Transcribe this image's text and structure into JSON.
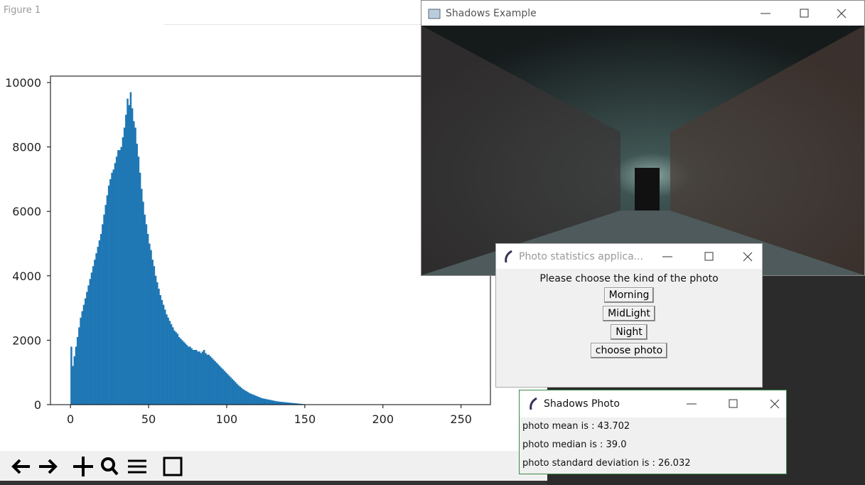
{
  "figure_window": {
    "title": "Figure 1"
  },
  "chart_data": {
    "type": "histogram",
    "color": "#1f77b4",
    "bins": [
      0,
      1,
      2,
      3,
      4,
      5,
      6,
      7,
      8,
      9,
      10,
      11,
      12,
      13,
      14,
      15,
      16,
      17,
      18,
      19,
      20,
      21,
      22,
      23,
      24,
      25,
      26,
      27,
      28,
      29,
      30,
      31,
      32,
      33,
      34,
      35,
      36,
      37,
      38,
      39,
      40,
      41,
      42,
      43,
      44,
      45,
      46,
      47,
      48,
      49,
      50,
      51,
      52,
      53,
      54,
      55,
      56,
      57,
      58,
      59,
      60,
      61,
      62,
      63,
      64,
      65,
      66,
      67,
      68,
      69,
      70,
      71,
      72,
      73,
      74,
      75,
      76,
      77,
      78,
      79,
      80,
      81,
      82,
      83,
      84,
      85,
      86,
      87,
      88,
      89,
      90,
      91,
      92,
      93,
      94,
      95,
      96,
      97,
      98,
      99,
      100,
      101,
      102,
      103,
      104,
      105,
      106,
      107,
      108,
      109,
      110,
      111,
      112,
      113,
      114,
      115,
      116,
      117,
      118,
      119,
      120,
      121,
      122,
      123,
      124,
      125,
      126,
      127,
      128,
      129,
      130,
      131,
      132,
      133,
      134,
      135,
      136,
      137,
      138,
      139,
      140,
      141,
      142,
      143,
      144,
      145,
      146,
      147,
      148,
      149,
      150,
      151
    ],
    "values": [
      1800,
      1200,
      1500,
      1800,
      2100,
      2400,
      2700,
      2900,
      3100,
      3300,
      3500,
      3700,
      3900,
      4100,
      4300,
      4500,
      4700,
      4900,
      5100,
      5300,
      5600,
      5900,
      6200,
      6500,
      6800,
      7000,
      7200,
      7300,
      7500,
      7700,
      7900,
      7900,
      8000,
      8300,
      8600,
      9000,
      9500,
      9300,
      9700,
      9200,
      8800,
      8600,
      8100,
      7700,
      7200,
      6700,
      6300,
      5900,
      5600,
      5300,
      5000,
      4800,
      4500,
      4300,
      4000,
      3800,
      3600,
      3400,
      3250,
      3100,
      2950,
      2800,
      2700,
      2600,
      2500,
      2400,
      2300,
      2250,
      2200,
      2100,
      2050,
      2000,
      1950,
      1900,
      1850,
      1800,
      1800,
      1750,
      1700,
      1700,
      1700,
      1650,
      1650,
      1600,
      1650,
      1700,
      1600,
      1550,
      1550,
      1500,
      1450,
      1400,
      1350,
      1300,
      1250,
      1200,
      1150,
      1100,
      1050,
      1000,
      950,
      900,
      850,
      800,
      750,
      700,
      650,
      600,
      560,
      520,
      480,
      450,
      420,
      390,
      360,
      340,
      320,
      300,
      280,
      260,
      240,
      220,
      200,
      190,
      180,
      170,
      160,
      150,
      140,
      130,
      120,
      110,
      100,
      95,
      90,
      85,
      80,
      75,
      70,
      65,
      60,
      55,
      50,
      45,
      40,
      35,
      30,
      25,
      20,
      15,
      10
    ],
    "xlim": [
      -12.8,
      268.8
    ],
    "xticks": [
      0,
      50,
      100,
      150,
      200,
      250
    ],
    "ylim": [
      0,
      10200
    ],
    "yticks": [
      0,
      2000,
      4000,
      6000,
      8000,
      10000
    ]
  },
  "shadows_window": {
    "title": "Shadows Example"
  },
  "stats_window": {
    "title": "Photo statistics applica...",
    "prompt": "Please choose the kind of the photo",
    "buttons": [
      "Morning",
      "MidLight",
      "Night",
      "choose photo"
    ]
  },
  "photo_window": {
    "title": "Shadows Photo",
    "lines": [
      "photo mean is : 43.702",
      "photo median is : 39.0",
      "photo standard deviation is : 26.032"
    ]
  }
}
